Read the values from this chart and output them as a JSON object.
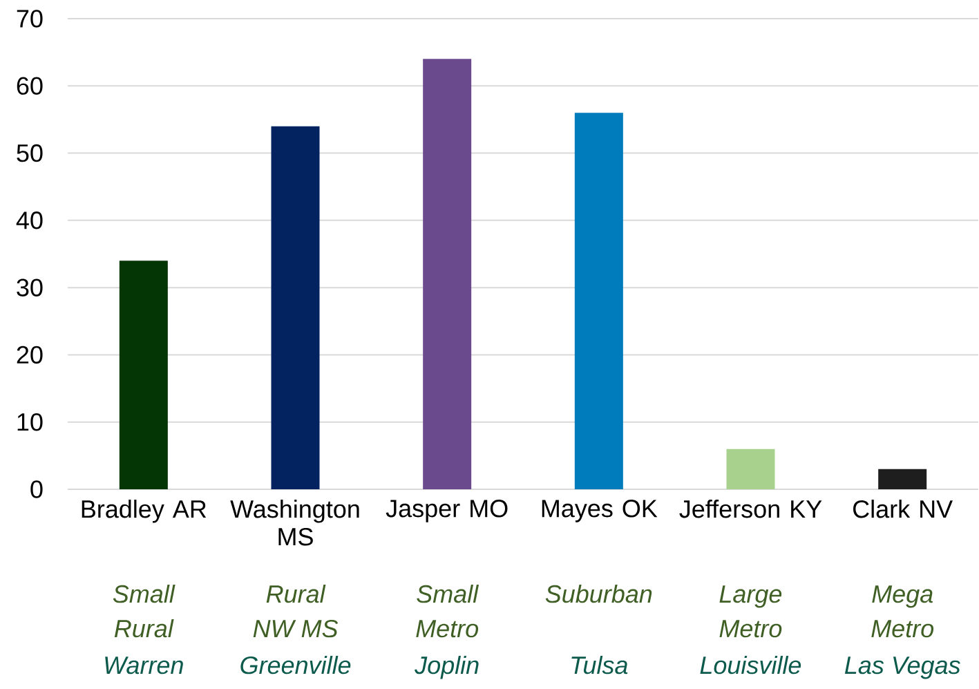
{
  "chart_data": {
    "type": "bar",
    "categories": [
      "Bradley AR",
      "Washington MS",
      "Jasper MO",
      "Mayes OK",
      "Jefferson KY",
      "Clark NV"
    ],
    "values": [
      34,
      54,
      64,
      56,
      6,
      3
    ],
    "colors": [
      "#043504",
      "#022260",
      "#6a4a8c",
      "#007bbb",
      "#a9d18e",
      "#1e1e1e"
    ],
    "ylim": [
      0,
      70
    ],
    "yticks": [
      0,
      10,
      20,
      30,
      40,
      50,
      60,
      70
    ],
    "grid": "y",
    "annotations": [
      "Small",
      "Rural",
      "Small",
      "Suburban",
      "Large",
      "Mega",
      "Rural",
      "NW MS",
      "Metro",
      "Metro",
      "Metro",
      "Warren",
      "Greenville",
      "Joplin",
      "Tulsa",
      "Louisville",
      "Las Vegas"
    ]
  }
}
